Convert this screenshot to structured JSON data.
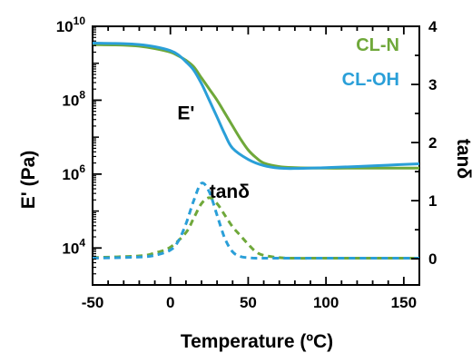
{
  "chart_data": {
    "type": "line",
    "xlabel": "Temperature (ºC)",
    "ylabel": "E' (Pa)",
    "y2label": "tanδ",
    "xlim": [
      -50,
      160
    ],
    "ylim": [
      1000,
      10000000000
    ],
    "y2lim": [
      -0.45,
      4
    ],
    "yscale": "log",
    "grid": false,
    "legend": "top-right",
    "x_ticks": [
      "-50",
      "0",
      "50",
      "100",
      "150"
    ],
    "x_tick_values": [
      -50,
      0,
      50,
      100,
      150
    ],
    "y_ticks": [
      {
        "base": "10",
        "exp": "10",
        "value": 10000000000
      },
      {
        "base": "10",
        "exp": "8",
        "value": 100000000
      },
      {
        "base": "10",
        "exp": "6",
        "value": 1000000
      },
      {
        "base": "10",
        "exp": "4",
        "value": 10000
      }
    ],
    "y2_ticks": [
      "4",
      "3",
      "2",
      "1",
      "0"
    ],
    "y2_tick_values": [
      4,
      3,
      2,
      1,
      0
    ],
    "annotations": [
      {
        "text": "E'",
        "x": 10,
        "y": 30000000
      },
      {
        "text": "tanδ",
        "x": 38,
        "y2": 1.05
      }
    ],
    "series": [
      {
        "name": "CL-N",
        "axis": "left",
        "color": "#6fa83a",
        "style": "solid",
        "x": [
          -50,
          -30,
          -20,
          -10,
          0,
          5,
          10,
          15,
          20,
          25,
          30,
          35,
          40,
          45,
          50,
          55,
          60,
          70,
          80,
          100,
          120,
          140,
          160
        ],
        "y": [
          3200000000,
          3100000000,
          2900000000,
          2500000000,
          2000000000,
          1600000000,
          1200000000,
          800000000,
          400000000,
          200000000,
          100000000,
          45000000,
          20000000,
          9000000,
          4500000,
          2800000,
          2000000,
          1600000,
          1500000,
          1450000,
          1450000,
          1450000,
          1450000
        ]
      },
      {
        "name": "CL-OH",
        "axis": "left",
        "color": "#2a9fd8",
        "style": "solid",
        "x": [
          -50,
          -30,
          -20,
          -10,
          0,
          5,
          10,
          15,
          20,
          25,
          30,
          35,
          40,
          50,
          60,
          70,
          80,
          100,
          120,
          140,
          160
        ],
        "y": [
          3500000000,
          3400000000,
          3200000000,
          2800000000,
          2200000000,
          1700000000,
          1100000000,
          650000000,
          280000000,
          100000000,
          35000000,
          12000000,
          5000000,
          2500000,
          1700000,
          1450000,
          1420000,
          1500000,
          1600000,
          1750000,
          1900000
        ]
      },
      {
        "name": "",
        "axis": "right",
        "color": "#6fa83a",
        "style": "dashed",
        "x": [
          -50,
          -20,
          -10,
          0,
          10,
          15,
          20,
          25,
          30,
          35,
          40,
          45,
          50,
          55,
          60,
          70,
          80,
          100,
          160
        ],
        "y2": [
          0.02,
          0.05,
          0.1,
          0.2,
          0.45,
          0.7,
          0.95,
          1.05,
          0.95,
          0.75,
          0.55,
          0.4,
          0.25,
          0.12,
          0.06,
          0.02,
          0.01,
          0.01,
          0.01
        ]
      },
      {
        "name": "",
        "axis": "right",
        "color": "#2a9fd8",
        "style": "dashed",
        "x": [
          -50,
          -20,
          -10,
          0,
          5,
          10,
          15,
          20,
          25,
          30,
          35,
          40,
          45,
          50,
          55,
          60,
          80,
          160
        ],
        "y2": [
          0.01,
          0.03,
          0.06,
          0.15,
          0.3,
          0.6,
          1.0,
          1.3,
          1.15,
          0.75,
          0.35,
          0.12,
          0.04,
          0.02,
          0.01,
          0.01,
          0.01,
          0.01
        ]
      }
    ]
  }
}
